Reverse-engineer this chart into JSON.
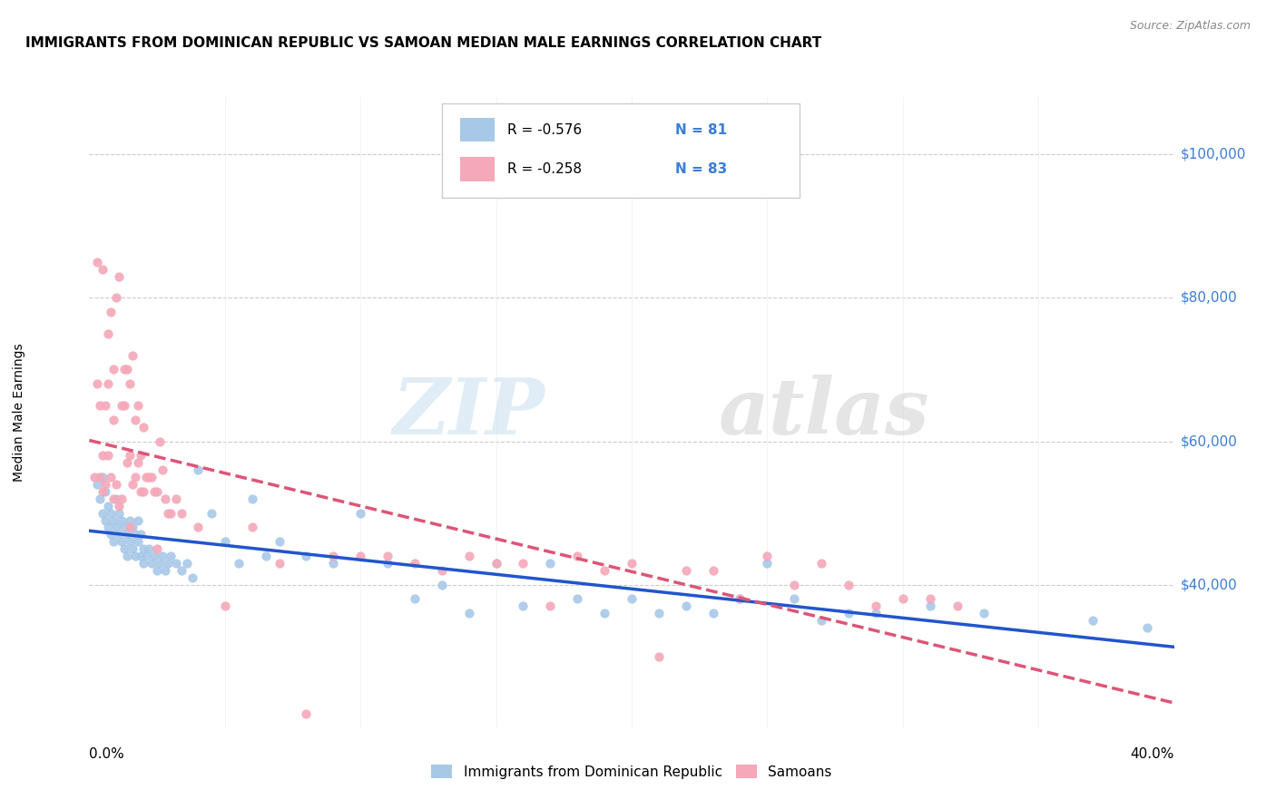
{
  "title": "IMMIGRANTS FROM DOMINICAN REPUBLIC VS SAMOAN MEDIAN MALE EARNINGS CORRELATION CHART",
  "source": "Source: ZipAtlas.com",
  "ylabel": "Median Male Earnings",
  "right_ytick_labels": [
    "$100,000",
    "$80,000",
    "$60,000",
    "$40,000"
  ],
  "right_ytick_values": [
    100000,
    80000,
    60000,
    40000
  ],
  "xlim": [
    0.0,
    0.4
  ],
  "ylim": [
    20000,
    108000
  ],
  "watermark_zip": "ZIP",
  "watermark_atlas": "atlas",
  "legend_blue_r": "R = -0.576",
  "legend_blue_n": "N = 81",
  "legend_pink_r": "R = -0.258",
  "legend_pink_n": "N = 83",
  "legend_label_blue": "Immigrants from Dominican Republic",
  "legend_label_pink": "Samoans",
  "blue_color": "#a8c8e8",
  "pink_color": "#f4a8b8",
  "blue_line_color": "#2255cc",
  "pink_line_color": "#dd5577",
  "blue_scatter_x": [
    0.003,
    0.004,
    0.005,
    0.005,
    0.006,
    0.006,
    0.007,
    0.007,
    0.008,
    0.008,
    0.009,
    0.009,
    0.01,
    0.01,
    0.011,
    0.011,
    0.012,
    0.012,
    0.013,
    0.013,
    0.014,
    0.014,
    0.015,
    0.015,
    0.016,
    0.016,
    0.017,
    0.017,
    0.018,
    0.018,
    0.019,
    0.019,
    0.02,
    0.02,
    0.021,
    0.022,
    0.023,
    0.024,
    0.025,
    0.026,
    0.027,
    0.028,
    0.029,
    0.03,
    0.032,
    0.034,
    0.036,
    0.038,
    0.04,
    0.045,
    0.05,
    0.055,
    0.06,
    0.065,
    0.07,
    0.08,
    0.09,
    0.1,
    0.11,
    0.12,
    0.13,
    0.14,
    0.15,
    0.16,
    0.17,
    0.18,
    0.19,
    0.2,
    0.21,
    0.22,
    0.23,
    0.24,
    0.25,
    0.26,
    0.27,
    0.28,
    0.29,
    0.31,
    0.33,
    0.37,
    0.39
  ],
  "blue_scatter_y": [
    54000,
    52000,
    50000,
    55000,
    49000,
    53000,
    48000,
    51000,
    47000,
    50000,
    46000,
    49000,
    48000,
    52000,
    47000,
    50000,
    46000,
    49000,
    45000,
    48000,
    44000,
    47000,
    46000,
    49000,
    45000,
    48000,
    44000,
    47000,
    46000,
    49000,
    44000,
    47000,
    45000,
    43000,
    44000,
    45000,
    43000,
    44000,
    42000,
    43000,
    44000,
    42000,
    43000,
    44000,
    43000,
    42000,
    43000,
    41000,
    56000,
    50000,
    46000,
    43000,
    52000,
    44000,
    46000,
    44000,
    43000,
    50000,
    43000,
    38000,
    40000,
    36000,
    43000,
    37000,
    43000,
    38000,
    36000,
    38000,
    36000,
    37000,
    36000,
    38000,
    43000,
    38000,
    35000,
    36000,
    36000,
    37000,
    36000,
    35000,
    34000
  ],
  "pink_scatter_x": [
    0.002,
    0.003,
    0.004,
    0.004,
    0.005,
    0.005,
    0.006,
    0.006,
    0.007,
    0.007,
    0.008,
    0.008,
    0.009,
    0.009,
    0.01,
    0.01,
    0.011,
    0.011,
    0.012,
    0.012,
    0.013,
    0.013,
    0.014,
    0.014,
    0.015,
    0.015,
    0.016,
    0.016,
    0.017,
    0.017,
    0.018,
    0.018,
    0.019,
    0.019,
    0.02,
    0.02,
    0.021,
    0.022,
    0.023,
    0.024,
    0.025,
    0.026,
    0.027,
    0.028,
    0.029,
    0.03,
    0.032,
    0.034,
    0.04,
    0.05,
    0.06,
    0.07,
    0.08,
    0.09,
    0.1,
    0.11,
    0.12,
    0.13,
    0.14,
    0.15,
    0.16,
    0.17,
    0.18,
    0.19,
    0.2,
    0.21,
    0.22,
    0.23,
    0.24,
    0.25,
    0.26,
    0.27,
    0.28,
    0.29,
    0.3,
    0.31,
    0.32,
    0.003,
    0.005,
    0.007,
    0.009,
    0.015,
    0.025
  ],
  "pink_scatter_y": [
    55000,
    68000,
    55000,
    65000,
    53000,
    58000,
    65000,
    54000,
    75000,
    58000,
    78000,
    55000,
    70000,
    52000,
    80000,
    54000,
    83000,
    51000,
    65000,
    52000,
    70000,
    65000,
    70000,
    57000,
    68000,
    58000,
    72000,
    54000,
    63000,
    55000,
    57000,
    65000,
    58000,
    53000,
    62000,
    53000,
    55000,
    55000,
    55000,
    53000,
    53000,
    60000,
    56000,
    52000,
    50000,
    50000,
    52000,
    50000,
    48000,
    37000,
    48000,
    43000,
    22000,
    44000,
    44000,
    44000,
    43000,
    42000,
    44000,
    43000,
    43000,
    37000,
    44000,
    42000,
    43000,
    30000,
    42000,
    42000,
    38000,
    44000,
    40000,
    43000,
    40000,
    37000,
    38000,
    38000,
    37000,
    85000,
    84000,
    68000,
    63000,
    48000,
    45000
  ]
}
